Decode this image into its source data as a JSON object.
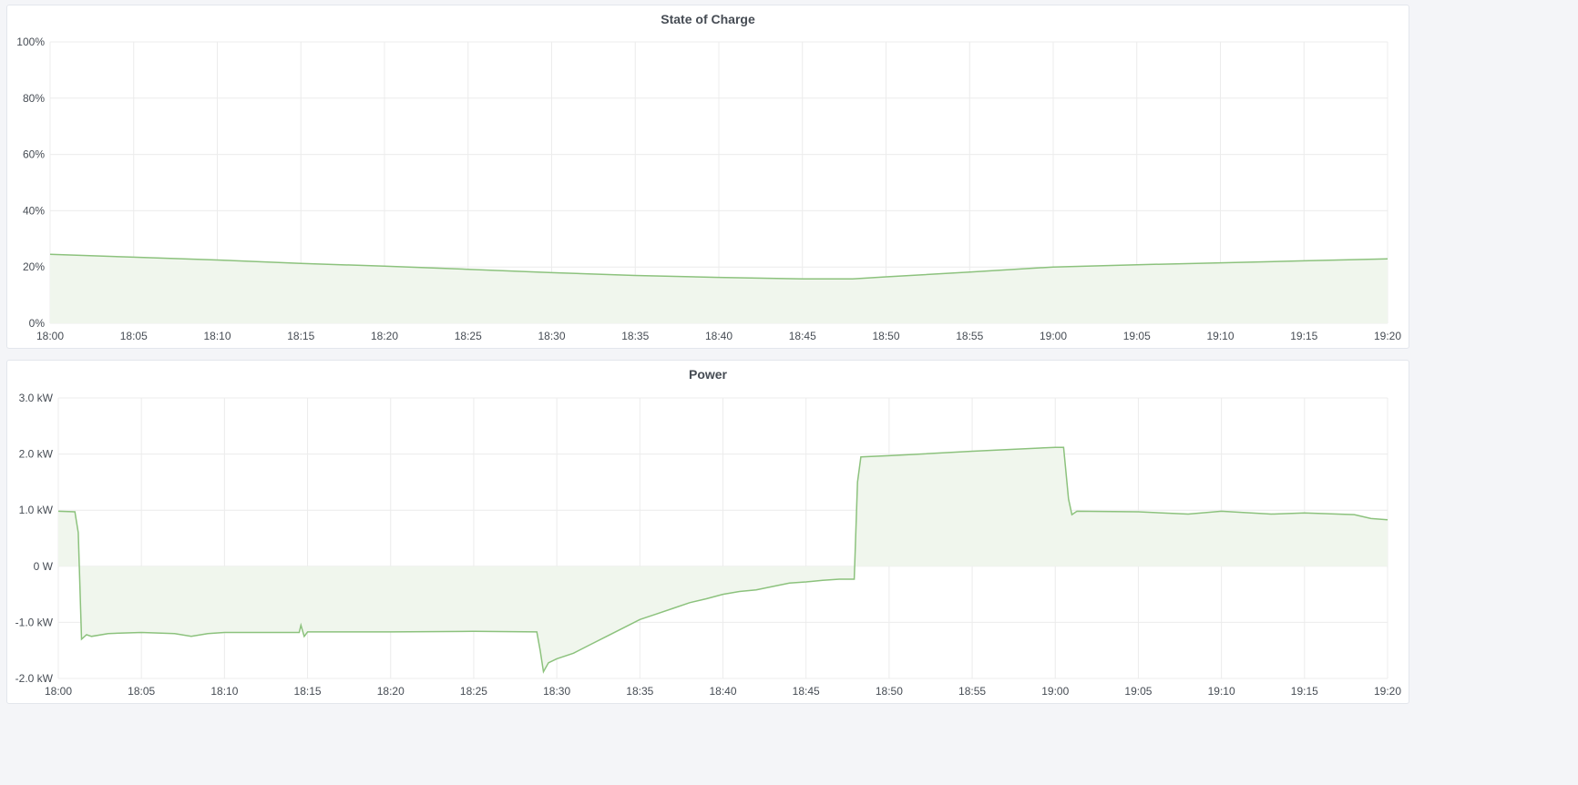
{
  "chart_data": [
    {
      "type": "area",
      "title": "State of Charge",
      "ylim": [
        0,
        100
      ],
      "yticks": [
        "0%",
        "20%",
        "40%",
        "60%",
        "80%",
        "100%"
      ],
      "yvalues": [
        0,
        20,
        40,
        60,
        80,
        100
      ],
      "xticks": [
        "18:00",
        "18:05",
        "18:10",
        "18:15",
        "18:20",
        "18:25",
        "18:30",
        "18:35",
        "18:40",
        "18:45",
        "18:50",
        "18:55",
        "19:00",
        "19:05",
        "19:10",
        "19:15",
        "19:20"
      ],
      "xlim": [
        "18:00:00",
        "19:20:00"
      ],
      "grid": true,
      "line_color": "#8cc27d",
      "fill_color": "#f0f6ed",
      "points": [
        [
          "18:00:00",
          24.5
        ],
        [
          "18:05:00",
          23.5
        ],
        [
          "18:10:00",
          22.5
        ],
        [
          "18:15:00",
          21.3
        ],
        [
          "18:20:00",
          20.3
        ],
        [
          "18:25:00",
          19.2
        ],
        [
          "18:30:00",
          18.0
        ],
        [
          "18:35:00",
          17.0
        ],
        [
          "18:40:00",
          16.3
        ],
        [
          "18:45:00",
          15.8
        ],
        [
          "18:48:00",
          15.8
        ],
        [
          "18:50:00",
          16.5
        ],
        [
          "18:55:00",
          18.2
        ],
        [
          "19:00:00",
          20.0
        ],
        [
          "19:05:00",
          20.8
        ],
        [
          "19:10:00",
          21.5
        ],
        [
          "19:15:00",
          22.2
        ],
        [
          "19:20:00",
          22.9
        ]
      ]
    },
    {
      "type": "area",
      "title": "Power",
      "unit": "kW",
      "ylim": [
        -2,
        3
      ],
      "yticks": [
        "-2.0 kW",
        "-1.0 kW",
        "0 W",
        "1.0 kW",
        "2.0 kW",
        "3.0 kW"
      ],
      "yvalues": [
        -2,
        -1,
        0,
        1,
        2,
        3
      ],
      "xticks": [
        "18:00",
        "18:05",
        "18:10",
        "18:15",
        "18:20",
        "18:25",
        "18:30",
        "18:35",
        "18:40",
        "18:45",
        "18:50",
        "18:55",
        "19:00",
        "19:05",
        "19:10",
        "19:15",
        "19:20"
      ],
      "xlim": [
        "18:00:00",
        "19:20:00"
      ],
      "grid": true,
      "line_color": "#8cc27d",
      "fill_color": "#f0f6ed",
      "points": [
        [
          "18:00:00",
          0.98
        ],
        [
          "18:01:00",
          0.97
        ],
        [
          "18:01:12",
          0.6
        ],
        [
          "18:01:24",
          -1.3
        ],
        [
          "18:01:42",
          -1.22
        ],
        [
          "18:02:00",
          -1.25
        ],
        [
          "18:03:00",
          -1.2
        ],
        [
          "18:05:00",
          -1.18
        ],
        [
          "18:07:00",
          -1.2
        ],
        [
          "18:08:00",
          -1.25
        ],
        [
          "18:09:00",
          -1.2
        ],
        [
          "18:10:00",
          -1.18
        ],
        [
          "18:14:30",
          -1.18
        ],
        [
          "18:14:36",
          -1.05
        ],
        [
          "18:14:48",
          -1.25
        ],
        [
          "18:15:00",
          -1.17
        ],
        [
          "18:20:00",
          -1.17
        ],
        [
          "18:25:00",
          -1.16
        ],
        [
          "18:28:48",
          -1.17
        ],
        [
          "18:29:00",
          -1.5
        ],
        [
          "18:29:12",
          -1.88
        ],
        [
          "18:29:30",
          -1.72
        ],
        [
          "18:30:00",
          -1.65
        ],
        [
          "18:31:00",
          -1.55
        ],
        [
          "18:32:00",
          -1.4
        ],
        [
          "18:33:00",
          -1.25
        ],
        [
          "18:34:00",
          -1.1
        ],
        [
          "18:35:00",
          -0.95
        ],
        [
          "18:36:00",
          -0.85
        ],
        [
          "18:37:00",
          -0.75
        ],
        [
          "18:38:00",
          -0.65
        ],
        [
          "18:39:00",
          -0.58
        ],
        [
          "18:40:00",
          -0.5
        ],
        [
          "18:41:00",
          -0.45
        ],
        [
          "18:42:00",
          -0.42
        ],
        [
          "18:43:00",
          -0.36
        ],
        [
          "18:44:00",
          -0.3
        ],
        [
          "18:45:00",
          -0.28
        ],
        [
          "18:46:00",
          -0.25
        ],
        [
          "18:47:00",
          -0.23
        ],
        [
          "18:47:54",
          -0.23
        ],
        [
          "18:48:06",
          1.5
        ],
        [
          "18:48:18",
          1.95
        ],
        [
          "18:50:00",
          1.97
        ],
        [
          "18:55:00",
          2.05
        ],
        [
          "19:00:00",
          2.12
        ],
        [
          "19:00:30",
          2.12
        ],
        [
          "19:00:48",
          1.2
        ],
        [
          "19:01:00",
          0.92
        ],
        [
          "19:01:18",
          0.98
        ],
        [
          "19:05:00",
          0.97
        ],
        [
          "19:08:00",
          0.93
        ],
        [
          "19:10:00",
          0.98
        ],
        [
          "19:13:00",
          0.93
        ],
        [
          "19:15:00",
          0.95
        ],
        [
          "19:18:00",
          0.92
        ],
        [
          "19:19:00",
          0.85
        ],
        [
          "19:20:00",
          0.83
        ]
      ]
    }
  ]
}
